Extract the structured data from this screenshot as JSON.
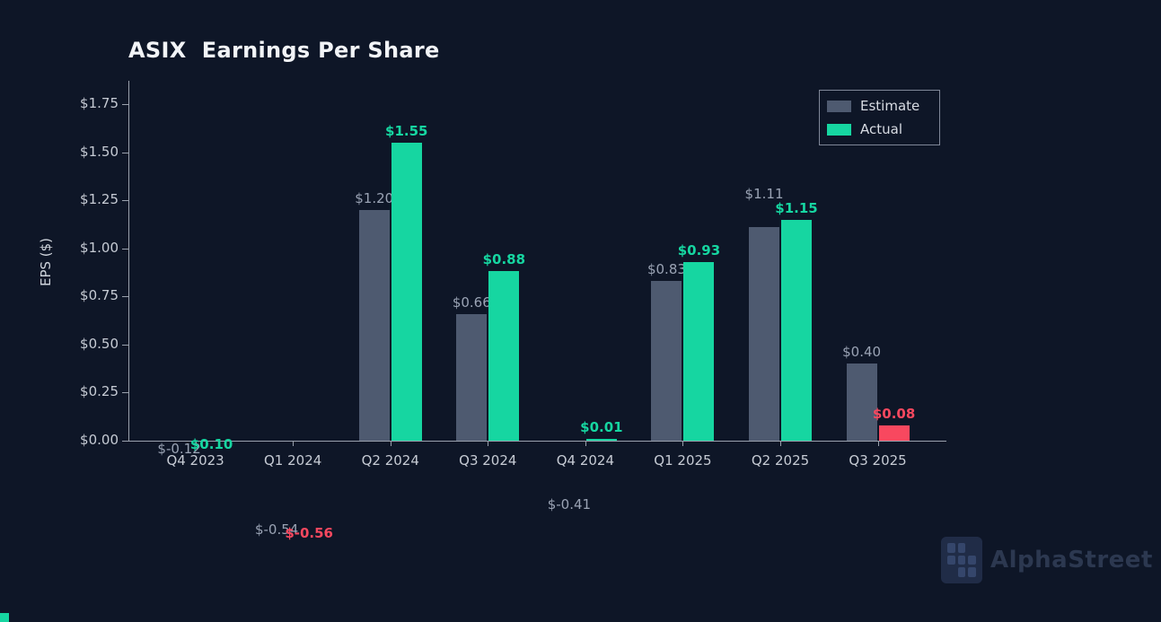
{
  "title": "ASIX  Earnings Per Share",
  "watermark": {
    "text": "AlphaStreet"
  },
  "chart_data": {
    "type": "bar",
    "title": "ASIX  Earnings Per Share",
    "xlabel": "",
    "ylabel": "EPS ($)",
    "categories": [
      "Q4 2023",
      "Q1 2024",
      "Q2 2024",
      "Q3 2024",
      "Q4 2024",
      "Q1 2025",
      "Q2 2025",
      "Q3 2025"
    ],
    "series": [
      {
        "name": "Estimate",
        "values": [
          -0.12,
          -0.54,
          1.2,
          0.66,
          -0.41,
          0.83,
          1.11,
          0.4
        ],
        "labels": [
          "$-0.12",
          "$-0.54",
          "$1.20",
          "$0.66",
          "$-0.41",
          "$0.83",
          "$1.11",
          "$0.40"
        ]
      },
      {
        "name": "Actual",
        "values": [
          0.1,
          -0.56,
          1.55,
          0.88,
          0.01,
          0.93,
          1.15,
          0.08
        ],
        "labels": [
          "$0.10",
          "$-0.56",
          "$1.55",
          "$0.88",
          "$0.01",
          "$0.93",
          "$1.15",
          "$0.08"
        ],
        "beat": [
          true,
          false,
          true,
          true,
          true,
          true,
          true,
          false
        ]
      }
    ],
    "yticks": {
      "values": [
        0,
        0.25,
        0.5,
        0.75,
        1.0,
        1.25,
        1.5,
        1.75
      ],
      "labels": [
        "$0.00",
        "$0.25",
        "$0.50",
        "$0.75",
        "$1.00",
        "$1.25",
        "$1.50",
        "$1.75"
      ]
    },
    "ylim": [
      0,
      1.87
    ],
    "grid": false,
    "legend": {
      "position": "top-right",
      "entries": [
        "Estimate",
        "Actual"
      ]
    },
    "colors": {
      "estimate": "#4e5a70",
      "actual_beat": "#16d6a1",
      "actual_miss": "#f8485f",
      "estimate_label": "#9aa3b4",
      "axis": "#9aa1ad",
      "tick_label": "#c6cbd4",
      "title": "#f2f4f7",
      "background": "#0e1627"
    }
  }
}
